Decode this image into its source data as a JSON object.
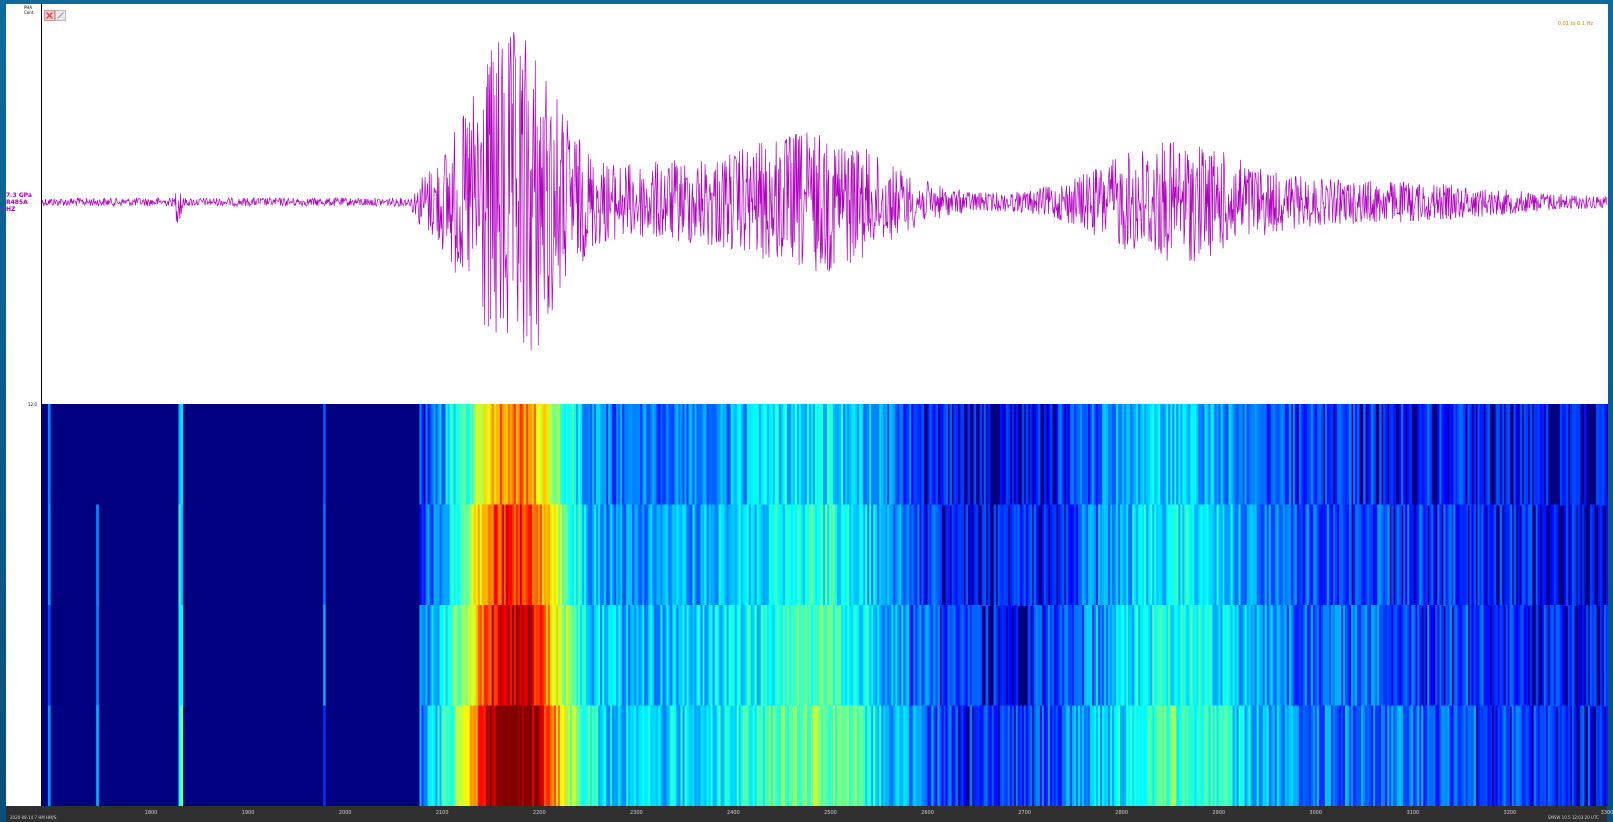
{
  "window": {
    "top_axis_label": "PHA Cont.",
    "spec_axis_label": "12.0",
    "filter_text": "0.01 to 0.1 Hz",
    "footer_left": "2020-08-14 7 HM HM/S",
    "footer_right": "SMSW 10.5 12:03:20 UTC"
  },
  "channel": {
    "line1": "7.3 GPa",
    "line2": "R485A",
    "line3": "HZ"
  },
  "colors": {
    "waveform": "#b000c0",
    "spectrogram_bg": "#000080",
    "filter_text": "#e08000"
  },
  "x_ticks": [
    "1800",
    "1900",
    "2000",
    "2100",
    "2200",
    "2300",
    "2400",
    "2500",
    "2600",
    "2700",
    "2800",
    "2900",
    "3000",
    "3100",
    "3200",
    "3300"
  ]
}
